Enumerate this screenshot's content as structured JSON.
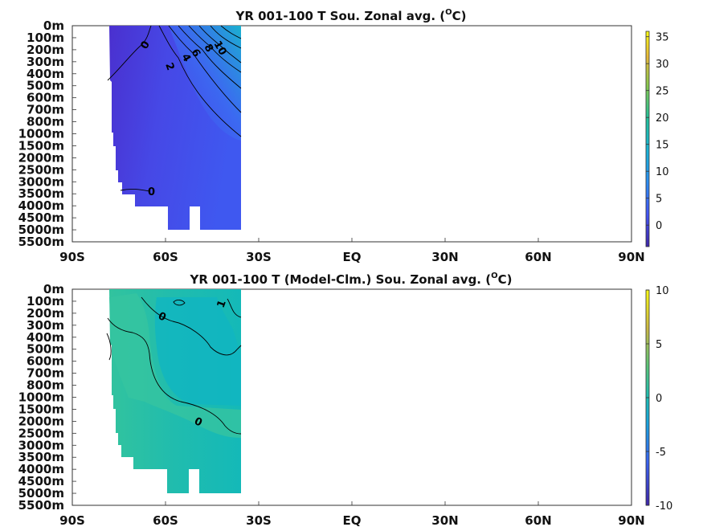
{
  "chart_data": [
    {
      "type": "heatmap",
      "title_main": "YR 001-100 T Sou. Zonal avg. (",
      "title_sup": "O",
      "title_end": "C)",
      "x_ticks": [
        "90S",
        "60S",
        "30S",
        "EQ",
        "30N",
        "60N",
        "90N"
      ],
      "x_tick_values": [
        -90,
        -60,
        -30,
        0,
        30,
        60,
        90
      ],
      "y_ticks": [
        "0m",
        "100m",
        "200m",
        "300m",
        "400m",
        "500m",
        "600m",
        "700m",
        "800m",
        "1000m",
        "1500m",
        "2000m",
        "2500m",
        "3000m",
        "3500m",
        "4000m",
        "4500m",
        "5000m",
        "5500m"
      ],
      "xlim": [
        -90,
        90
      ],
      "colorbar": {
        "min": -4,
        "max": 36,
        "ticks": [
          "0",
          "5",
          "10",
          "15",
          "20",
          "25",
          "30",
          "35"
        ],
        "tick_values": [
          0,
          5,
          10,
          15,
          20,
          25,
          30,
          35
        ]
      },
      "data_extent_lat": [
        -78,
        -35
      ],
      "contour_labels": [
        "0",
        "2",
        "4",
        "6",
        "8",
        "10",
        "0"
      ],
      "colors": {
        "low": "#3a2fd0",
        "mid": "#4c56ea",
        "warm": "#2f8fe0",
        "top": "#18b4c8"
      }
    },
    {
      "type": "heatmap",
      "title_main": "YR 001-100 T (Model-Clm.) Sou. Zonal avg. (",
      "title_sup": "O",
      "title_end": "C)",
      "x_ticks": [
        "90S",
        "60S",
        "30S",
        "EQ",
        "30N",
        "60N",
        "90N"
      ],
      "x_tick_values": [
        -90,
        -60,
        -30,
        0,
        30,
        60,
        90
      ],
      "y_ticks": [
        "0m",
        "100m",
        "200m",
        "300m",
        "400m",
        "500m",
        "600m",
        "700m",
        "800m",
        "1000m",
        "1500m",
        "2000m",
        "2500m",
        "3000m",
        "3500m",
        "4000m",
        "4500m",
        "5000m",
        "5500m"
      ],
      "xlim": [
        -90,
        90
      ],
      "colorbar": {
        "min": -10,
        "max": 10,
        "ticks": [
          "10",
          "5",
          "0",
          "-5",
          "-10"
        ],
        "tick_values": [
          10,
          5,
          0,
          -5,
          -10
        ]
      },
      "data_extent_lat": [
        -78,
        -35
      ],
      "contour_labels": [
        "0",
        "1",
        "0"
      ],
      "colors": {
        "base": "#22bfa8",
        "warm": "#3cc59a",
        "cool": "#0fb7c0"
      }
    }
  ]
}
